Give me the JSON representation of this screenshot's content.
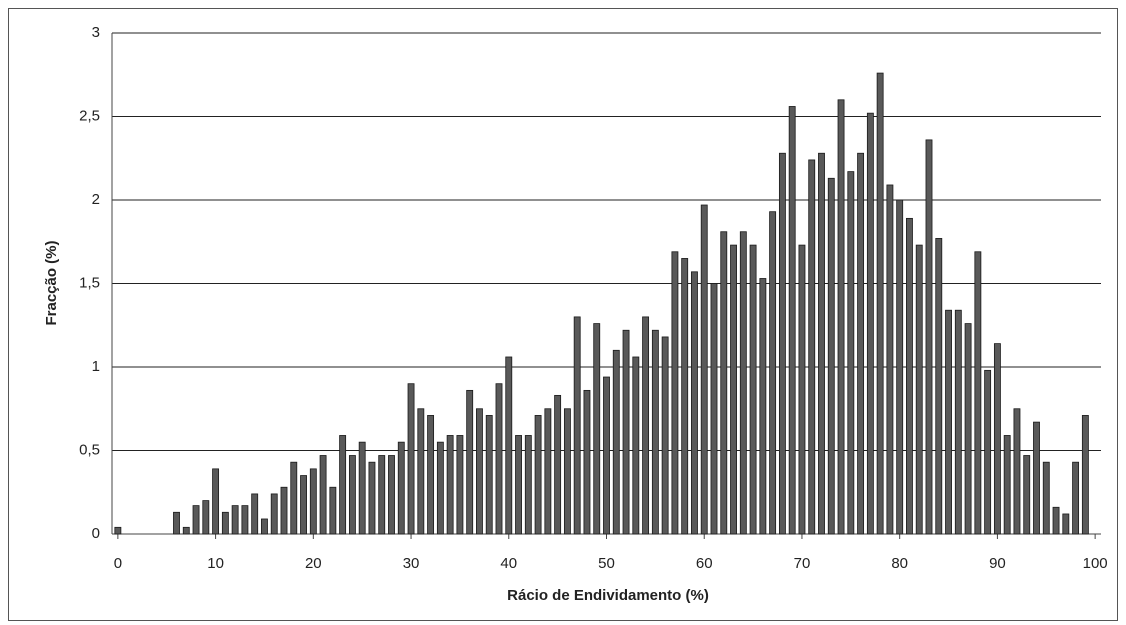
{
  "chart_data": {
    "type": "bar",
    "x_label": "Rácio de Endividamento (%)",
    "y_label": "Fracção (%)",
    "x": [
      0,
      1,
      2,
      3,
      4,
      5,
      6,
      7,
      8,
      9,
      10,
      11,
      12,
      13,
      14,
      15,
      16,
      17,
      18,
      19,
      20,
      21,
      22,
      23,
      24,
      25,
      26,
      27,
      28,
      29,
      30,
      31,
      32,
      33,
      34,
      35,
      36,
      37,
      38,
      39,
      40,
      41,
      42,
      43,
      44,
      45,
      46,
      47,
      48,
      49,
      50,
      51,
      52,
      53,
      54,
      55,
      56,
      57,
      58,
      59,
      60,
      61,
      62,
      63,
      64,
      65,
      66,
      67,
      68,
      69,
      70,
      71,
      72,
      73,
      74,
      75,
      76,
      77,
      78,
      79,
      80,
      81,
      82,
      83,
      84,
      85,
      86,
      87,
      88,
      89,
      90,
      91,
      92,
      93,
      94,
      95,
      96,
      97,
      98,
      99
    ],
    "values": [
      0.04,
      0,
      0,
      0,
      0,
      0,
      0.13,
      0.04,
      0.17,
      0.2,
      0.39,
      0.13,
      0.17,
      0.17,
      0.24,
      0.09,
      0.24,
      0.28,
      0.43,
      0.35,
      0.39,
      0.47,
      0.28,
      0.59,
      0.47,
      0.55,
      0.43,
      0.47,
      0.47,
      0.55,
      0.9,
      0.75,
      0.71,
      0.55,
      0.59,
      0.59,
      0.86,
      0.75,
      0.71,
      0.9,
      1.06,
      0.59,
      0.59,
      0.71,
      0.75,
      0.83,
      0.75,
      1.3,
      0.86,
      1.26,
      0.94,
      1.1,
      1.22,
      1.06,
      1.3,
      1.22,
      1.18,
      1.69,
      1.65,
      1.57,
      1.97,
      1.5,
      1.81,
      1.73,
      1.81,
      1.73,
      1.53,
      1.93,
      2.28,
      2.56,
      1.73,
      2.24,
      2.28,
      2.13,
      2.6,
      2.17,
      2.28,
      2.52,
      2.76,
      2.09,
      2.0,
      1.89,
      1.73,
      2.36,
      1.77,
      1.34,
      1.34,
      1.26,
      1.69,
      0.98,
      1.14,
      0.59,
      0.75,
      0.47,
      0.67,
      0.43,
      0.16,
      0.12,
      0.43,
      0.71
    ],
    "color": "#595959",
    "xlim": [
      -0.6,
      100.6
    ],
    "xticks": [
      0,
      10,
      20,
      30,
      40,
      50,
      60,
      70,
      80,
      90,
      100
    ],
    "ylim": [
      0,
      3
    ],
    "yticks": [
      0,
      {
        "value": 0.5,
        "label": "0,5"
      },
      1,
      {
        "value": 1.5,
        "label": "1,5"
      },
      2,
      {
        "value": 2.5,
        "label": "2,5"
      },
      3
    ],
    "grid": true
  }
}
